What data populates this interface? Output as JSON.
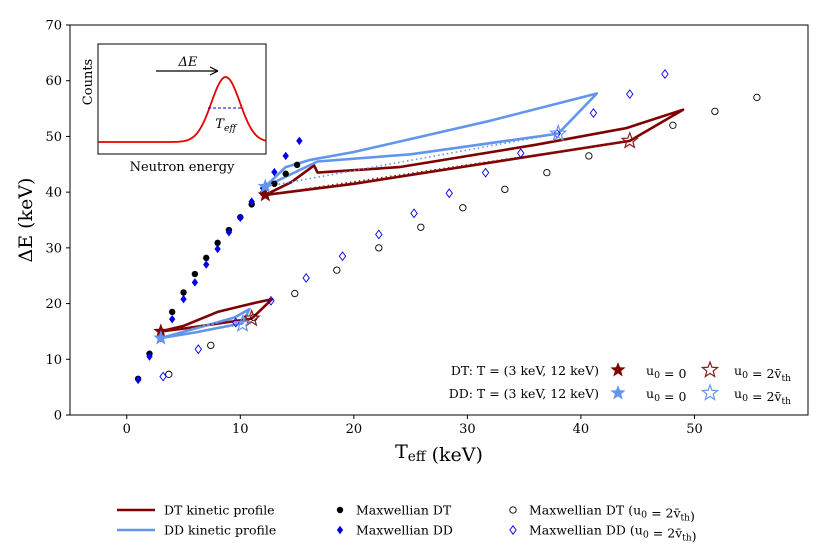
{
  "chart_data": {
    "type": "scatter",
    "xlabel": "T_eff (keV)",
    "ylabel": "ΔE (keV)",
    "xlim": [
      -5,
      60
    ],
    "ylim": [
      0,
      70
    ],
    "xticks": [
      0,
      10,
      20,
      30,
      40,
      50
    ],
    "yticks": [
      0,
      10,
      20,
      30,
      40,
      50,
      60,
      70
    ],
    "series": [
      {
        "name": "DT kinetic profile",
        "kind": "line",
        "color": "#7f0000",
        "segments": [
          [
            [
              3.0,
              15.0
            ],
            [
              5,
              16.0
            ],
            [
              8,
              18.5
            ],
            [
              11,
              20.0
            ],
            [
              12.8,
              20.8
            ],
            [
              11.0,
              17.3
            ],
            [
              5,
              15.5
            ],
            [
              3.0,
              15.0
            ]
          ],
          [
            [
              12.2,
              39.5
            ],
            [
              14.5,
              41.8
            ],
            [
              16.5,
              44.8
            ],
            [
              16.8,
              43.5
            ],
            [
              24,
              44.5
            ],
            [
              36,
              48.5
            ],
            [
              44,
              51.5
            ],
            [
              49,
              54.8
            ],
            [
              44.3,
              49.2
            ],
            [
              20,
              41.5
            ],
            [
              12.2,
              39.5
            ]
          ]
        ]
      },
      {
        "name": "DD kinetic profile",
        "kind": "line",
        "color": "#6495ed",
        "segments": [
          [
            [
              3.0,
              13.8
            ],
            [
              6,
              15.5
            ],
            [
              9.5,
              17.5
            ],
            [
              10.8,
              19.0
            ],
            [
              10.2,
              16.5
            ],
            [
              6,
              14.8
            ],
            [
              3.0,
              13.8
            ]
          ],
          [
            [
              12.2,
              41.0
            ],
            [
              14,
              44.5
            ],
            [
              16.2,
              45.8
            ],
            [
              20,
              47.2
            ],
            [
              32,
              52.8
            ],
            [
              41.4,
              57.7
            ],
            [
              38,
              50.5
            ],
            [
              25,
              46.8
            ],
            [
              16.8,
              45.5
            ],
            [
              12.2,
              41.0
            ]
          ]
        ]
      },
      {
        "name": "DT dotted link",
        "kind": "dotted",
        "color": "#8b1a1a",
        "segments": [
          [
            [
              3.0,
              15.0
            ],
            [
              11.0,
              17.3
            ]
          ],
          [
            [
              12.2,
              39.5
            ],
            [
              44.3,
              49.2
            ]
          ]
        ]
      },
      {
        "name": "DD dotted link",
        "kind": "dotted",
        "color": "#6495ed",
        "segments": [
          [
            [
              3.0,
              13.8
            ],
            [
              10.2,
              16.3
            ]
          ],
          [
            [
              12.2,
              41.0
            ],
            [
              38.0,
              50.5
            ]
          ]
        ]
      },
      {
        "name": "Maxwellian DT",
        "kind": "marker",
        "marker": "filled-circle",
        "color": "#000000",
        "points": [
          [
            1.0,
            6.5
          ],
          [
            2.0,
            11.0
          ],
          [
            3.0,
            14.2
          ],
          [
            4.0,
            18.5
          ],
          [
            5.0,
            22.0
          ],
          [
            6.0,
            25.3
          ],
          [
            7.0,
            28.2
          ],
          [
            8.0,
            30.9
          ],
          [
            9.0,
            33.2
          ],
          [
            10.0,
            35.5
          ],
          [
            11.0,
            37.8
          ],
          [
            12.0,
            39.8
          ],
          [
            13.0,
            41.5
          ],
          [
            14.0,
            43.3
          ],
          [
            15.0,
            44.9
          ]
        ]
      },
      {
        "name": "Maxwellian DD",
        "kind": "marker",
        "marker": "filled-diamond",
        "color": "#0000e6",
        "points": [
          [
            1.0,
            6.3
          ],
          [
            2.0,
            10.5
          ],
          [
            3.0,
            13.8
          ],
          [
            4.0,
            17.2
          ],
          [
            5.0,
            20.8
          ],
          [
            6.0,
            23.8
          ],
          [
            7.0,
            27.0
          ],
          [
            8.0,
            29.8
          ],
          [
            9.0,
            32.8
          ],
          [
            10.0,
            35.4
          ],
          [
            11.0,
            38.3
          ],
          [
            12.0,
            40.7
          ],
          [
            13.0,
            43.6
          ],
          [
            14.0,
            46.5
          ],
          [
            15.2,
            49.2
          ]
        ]
      },
      {
        "name": "Maxwellian DT (u0 = 2v_th)",
        "kind": "marker",
        "marker": "open-circle",
        "color": "#000000",
        "points": [
          [
            3.7,
            7.3
          ],
          [
            7.4,
            12.5
          ],
          [
            11.2,
            17.5
          ],
          [
            14.8,
            21.8
          ],
          [
            18.5,
            26.0
          ],
          [
            22.2,
            30.0
          ],
          [
            25.9,
            33.7
          ],
          [
            29.6,
            37.2
          ],
          [
            33.3,
            40.5
          ],
          [
            37.0,
            43.5
          ],
          [
            40.7,
            46.5
          ],
          [
            48.1,
            52.0
          ],
          [
            51.8,
            54.5
          ],
          [
            55.5,
            57.0
          ]
        ]
      },
      {
        "name": "Maxwellian DD (u0 = 2v_th)",
        "kind": "marker",
        "marker": "open-diamond",
        "color": "#0000e6",
        "points": [
          [
            3.2,
            6.9
          ],
          [
            6.3,
            11.8
          ],
          [
            9.6,
            16.6
          ],
          [
            12.7,
            20.5
          ],
          [
            15.8,
            24.6
          ],
          [
            19.0,
            28.5
          ],
          [
            22.2,
            32.4
          ],
          [
            25.3,
            36.2
          ],
          [
            28.4,
            39.8
          ],
          [
            31.6,
            43.5
          ],
          [
            34.7,
            47.0
          ],
          [
            37.9,
            50.5
          ],
          [
            41.1,
            54.2
          ],
          [
            44.3,
            57.6
          ],
          [
            47.4,
            61.2
          ]
        ]
      },
      {
        "name": "DT u0 = 0",
        "kind": "marker",
        "marker": "filled-star",
        "color": "#7f0000",
        "points": [
          [
            3.0,
            15.0
          ],
          [
            12.2,
            39.5
          ]
        ]
      },
      {
        "name": "DT u0 = 2v_th",
        "kind": "marker",
        "marker": "open-star",
        "color": "#8b1a1a",
        "points": [
          [
            11.0,
            17.3
          ],
          [
            44.3,
            49.2
          ]
        ]
      },
      {
        "name": "DD u0 = 0",
        "kind": "marker",
        "marker": "filled-star",
        "color": "#6495ed",
        "points": [
          [
            3.0,
            13.8
          ],
          [
            12.2,
            41.0
          ]
        ]
      },
      {
        "name": "DD u0 = 2v_th",
        "kind": "marker",
        "marker": "open-star",
        "color": "#6495ed",
        "points": [
          [
            10.2,
            16.3
          ],
          [
            38.0,
            50.5
          ]
        ]
      }
    ],
    "inset": {
      "xlabel": "Neutron energy",
      "ylabel": "Counts",
      "arrow_label": "ΔE",
      "width_label": "T_eff"
    },
    "inner_legend": {
      "dt_label": "DT: T = (3 keV, 12 keV)",
      "dd_label": "DD: T = (3 keV, 12 keV)",
      "u0_zero": "u₀ = 0",
      "u0_two": "u₀ = 2v̄_th"
    },
    "bottom_legend": [
      "DT kinetic profile",
      "DD kinetic profile",
      "Maxwellian DT",
      "Maxwellian DD",
      "Maxwellian DT (u₀ = 2v̄_th)",
      "Maxwellian DD (u₀ = 2v̄_th)"
    ]
  }
}
